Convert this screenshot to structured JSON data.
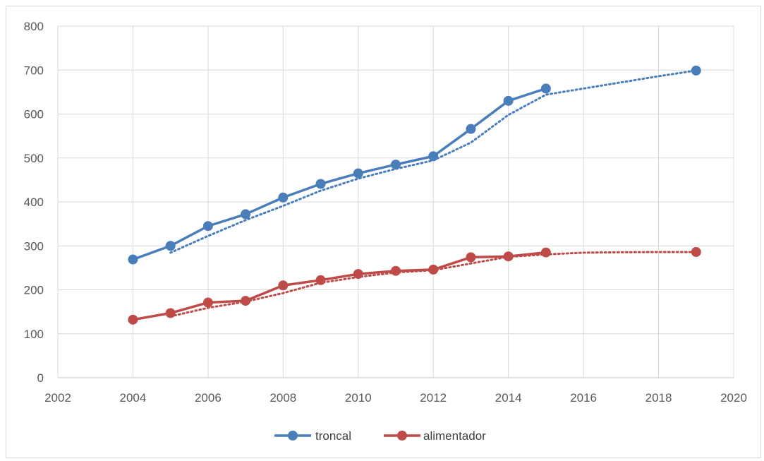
{
  "chart_data": {
    "type": "scatter",
    "title": "",
    "xlabel": "",
    "ylabel": "",
    "xlim": [
      2002,
      2020
    ],
    "ylim": [
      0,
      800
    ],
    "x_ticks": [
      2002,
      2004,
      2006,
      2008,
      2010,
      2012,
      2014,
      2016,
      2018,
      2020
    ],
    "y_ticks": [
      0,
      100,
      200,
      300,
      400,
      500,
      600,
      700,
      800
    ],
    "grid": true,
    "legend_position": "bottom",
    "series": [
      {
        "name": "troncal",
        "color": "#4a7ebb",
        "x": [
          2004,
          2005,
          2006,
          2007,
          2008,
          2009,
          2010,
          2011,
          2012,
          2013,
          2014,
          2015,
          2019
        ],
        "y": [
          269,
          300,
          345,
          372,
          410,
          441,
          465,
          485,
          504,
          566,
          630,
          658,
          699
        ],
        "connected_through": 2015,
        "trend_line": {
          "style": "dotted",
          "x": [
            2005,
            2006,
            2007,
            2008,
            2009,
            2010,
            2011,
            2012,
            2013,
            2014,
            2015,
            2016,
            2017,
            2018,
            2019
          ],
          "y": [
            284.5,
            322.5,
            358.5,
            391,
            425.5,
            453,
            475,
            494.5,
            535,
            598,
            644,
            658,
            672,
            686,
            699
          ]
        }
      },
      {
        "name": "alimentador",
        "color": "#be4b48",
        "x": [
          2004,
          2005,
          2006,
          2007,
          2008,
          2009,
          2010,
          2011,
          2012,
          2013,
          2014,
          2015,
          2019
        ],
        "y": [
          132,
          147,
          171,
          175,
          210,
          222,
          236,
          243,
          246,
          274,
          276,
          285,
          286
        ],
        "connected_through": 2015,
        "trend_line": {
          "style": "dotted",
          "x": [
            2005,
            2006,
            2007,
            2008,
            2009,
            2010,
            2011,
            2012,
            2013,
            2014,
            2015,
            2016,
            2017,
            2018,
            2019
          ],
          "y": [
            139.5,
            159,
            173,
            192.5,
            216,
            229,
            239.5,
            244.5,
            260,
            275,
            280.5,
            284.5,
            285.5,
            286,
            286
          ]
        }
      }
    ]
  }
}
